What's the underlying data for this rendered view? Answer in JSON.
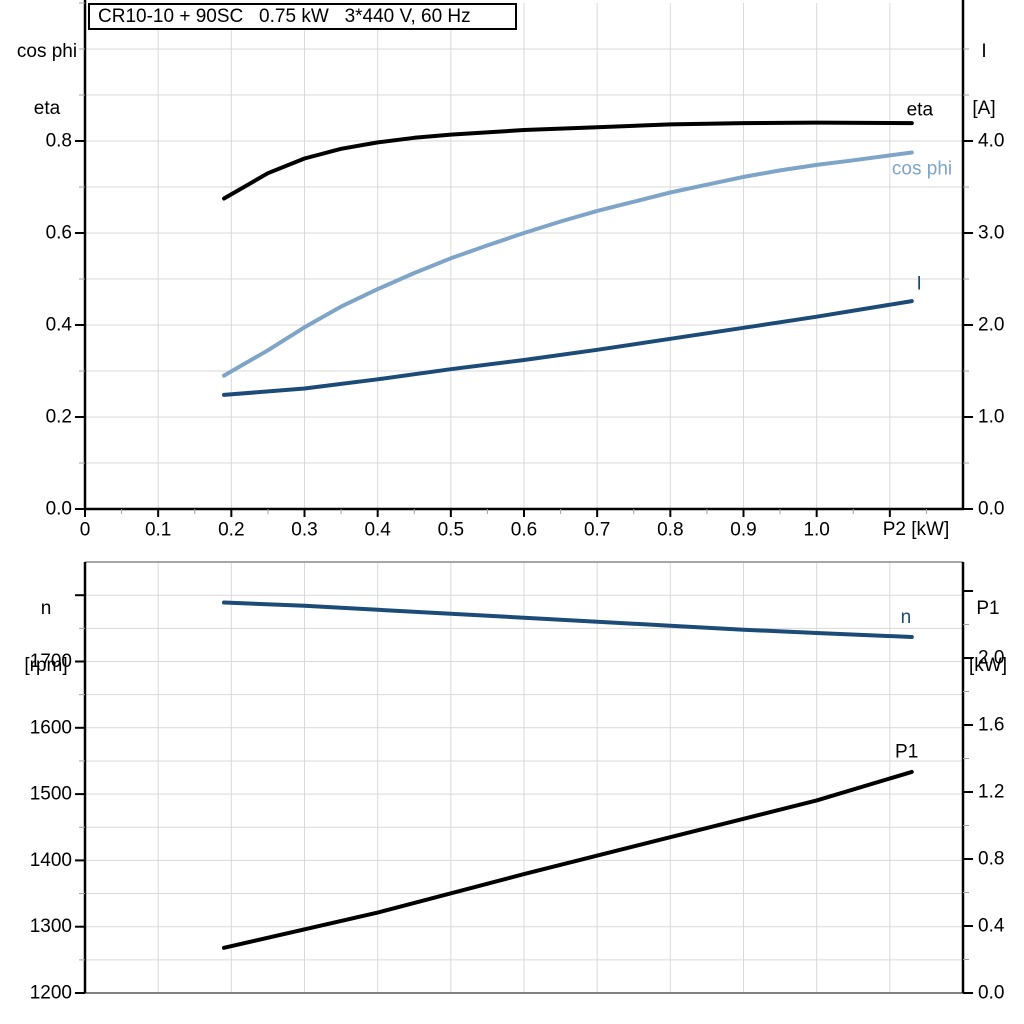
{
  "title_box": {
    "text": "CR10-10 + 90SC   0.75 kW   3*440 V, 60 Hz"
  },
  "chart_data": [
    {
      "type": "line",
      "name": "motor-performance",
      "x_axis": {
        "label": "P2 [kW]",
        "min": 0,
        "max": 1.2,
        "tick_step": 0.1,
        "tick_labels": [
          "0",
          "0.1",
          "0.2",
          "0.3",
          "0.4",
          "0.5",
          "0.6",
          "0.7",
          "0.8",
          "0.9",
          "1.0"
        ]
      },
      "left_axis": {
        "title_lines": [
          "cos phi",
          "eta"
        ],
        "min": 0,
        "max": 1.1,
        "tick_step": 0.2,
        "tick_labels": [
          "0.0",
          "0.2",
          "0.4",
          "0.6",
          "0.8"
        ]
      },
      "right_axis": {
        "title_lines": [
          "I",
          "[A]"
        ],
        "min": 0,
        "max": 5.5,
        "tick_step": 1.0,
        "tick_labels": [
          "0.0",
          "1.0",
          "2.0",
          "3.0",
          "4.0"
        ]
      },
      "grid": true,
      "series": [
        {
          "name": "eta",
          "axis": "left",
          "color": "#000000",
          "width": 4,
          "x": [
            0.19,
            0.25,
            0.3,
            0.35,
            0.4,
            0.45,
            0.5,
            0.6,
            0.7,
            0.8,
            0.9,
            1.0,
            1.13
          ],
          "y": [
            0.675,
            0.73,
            0.762,
            0.783,
            0.797,
            0.807,
            0.814,
            0.824,
            0.83,
            0.836,
            0.839,
            0.84,
            0.839
          ],
          "label": {
            "text": "eta",
            "x": 1.141,
            "y": 0.867
          }
        },
        {
          "name": "cos phi",
          "axis": "left",
          "color": "#7EA4C8",
          "width": 4,
          "x": [
            0.19,
            0.25,
            0.3,
            0.35,
            0.4,
            0.45,
            0.5,
            0.55,
            0.6,
            0.65,
            0.7,
            0.75,
            0.8,
            0.85,
            0.9,
            0.95,
            1.0,
            1.05,
            1.13
          ],
          "y": [
            0.29,
            0.345,
            0.395,
            0.44,
            0.478,
            0.513,
            0.545,
            0.573,
            0.6,
            0.625,
            0.648,
            0.668,
            0.688,
            0.705,
            0.722,
            0.736,
            0.748,
            0.758,
            0.775
          ],
          "label": {
            "text": "cos phi",
            "x": 1.144,
            "y": 0.739
          }
        },
        {
          "name": "I",
          "axis": "right",
          "color": "#1C4B77",
          "width": 4,
          "x": [
            0.19,
            0.3,
            0.4,
            0.5,
            0.6,
            0.7,
            0.8,
            0.9,
            1.0,
            1.13
          ],
          "y": [
            1.24,
            1.31,
            1.41,
            1.52,
            1.62,
            1.73,
            1.85,
            1.97,
            2.09,
            2.26
          ],
          "label": {
            "text": "I",
            "x": 1.14,
            "y": 2.446
          }
        }
      ]
    },
    {
      "type": "line",
      "name": "speed-power",
      "x_axis": {
        "label": "",
        "min": 0,
        "max": 1.2,
        "tick_step": 0.1,
        "tick_labels": []
      },
      "left_axis": {
        "title_lines": [
          "n",
          "[rpm]"
        ],
        "min": 1200,
        "max": 1850,
        "tick_step": 100,
        "tick_labels": [
          "1200",
          "1300",
          "1400",
          "1500",
          "1600",
          "1700"
        ]
      },
      "right_axis": {
        "title_lines": [
          "P1",
          "[kW]"
        ],
        "min": 0,
        "max": 2.57,
        "tick_step": 0.4,
        "tick_labels": [
          "0.0",
          "0.4",
          "0.8",
          "1.2",
          "1.6",
          "2.0"
        ]
      },
      "grid": true,
      "series": [
        {
          "name": "n",
          "axis": "left",
          "color": "#1C4B77",
          "width": 4,
          "x": [
            0.19,
            0.3,
            0.4,
            0.5,
            0.6,
            0.7,
            0.8,
            0.9,
            1.0,
            1.13
          ],
          "y": [
            1789,
            1784,
            1778,
            1772,
            1766,
            1760,
            1754,
            1748,
            1743,
            1737
          ],
          "label": {
            "text": "n",
            "x": 1.122,
            "y": 1766
          }
        },
        {
          "name": "P1",
          "axis": "right",
          "color": "#000000",
          "width": 4,
          "x": [
            0.19,
            0.4,
            0.6,
            0.8,
            1.0,
            1.13
          ],
          "y": [
            0.27,
            0.48,
            0.71,
            0.93,
            1.15,
            1.32
          ],
          "label": {
            "text": "P1",
            "x": 1.123,
            "y": 1.44
          }
        }
      ]
    }
  ],
  "colors": {
    "grid": "#D9D9D9",
    "minor_tick": "#A0A0A0",
    "axis": "#000000",
    "border_top": "#A6A6A6",
    "border_bottom": "#808080",
    "dark_blue": "#1C4B77",
    "light_blue": "#7EA4C8"
  }
}
